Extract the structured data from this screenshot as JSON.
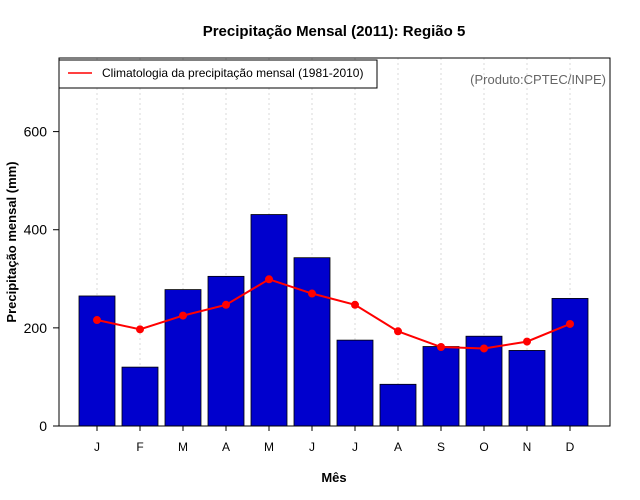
{
  "chart_data": {
    "type": "bar",
    "title": "Precipitação Mensal (2011): Região 5",
    "xlabel": "Mês",
    "ylabel": "Precipitação mensal (mm)",
    "categories": [
      "J",
      "F",
      "M",
      "A",
      "M",
      "J",
      "J",
      "A",
      "S",
      "O",
      "N",
      "D"
    ],
    "ylim": [
      0,
      750
    ],
    "yticks": [
      0,
      200,
      400,
      600
    ],
    "grid": "vertical dotted",
    "legend_position": "top-left",
    "series": [
      {
        "name": "Precipitação mensal (2011)",
        "type": "bar",
        "color": "#0000CD",
        "values": [
          265,
          120,
          278,
          305,
          431,
          343,
          175,
          85,
          162,
          183,
          154,
          260
        ]
      },
      {
        "name": "Climatologia da precipitação mensal (1981-2010)",
        "type": "line",
        "color": "#FF0000",
        "values": [
          216,
          197,
          225,
          247,
          299,
          270,
          247,
          193,
          161,
          158,
          172,
          208
        ]
      }
    ],
    "annotation": "(Produto:CPTEC/INPE)"
  }
}
